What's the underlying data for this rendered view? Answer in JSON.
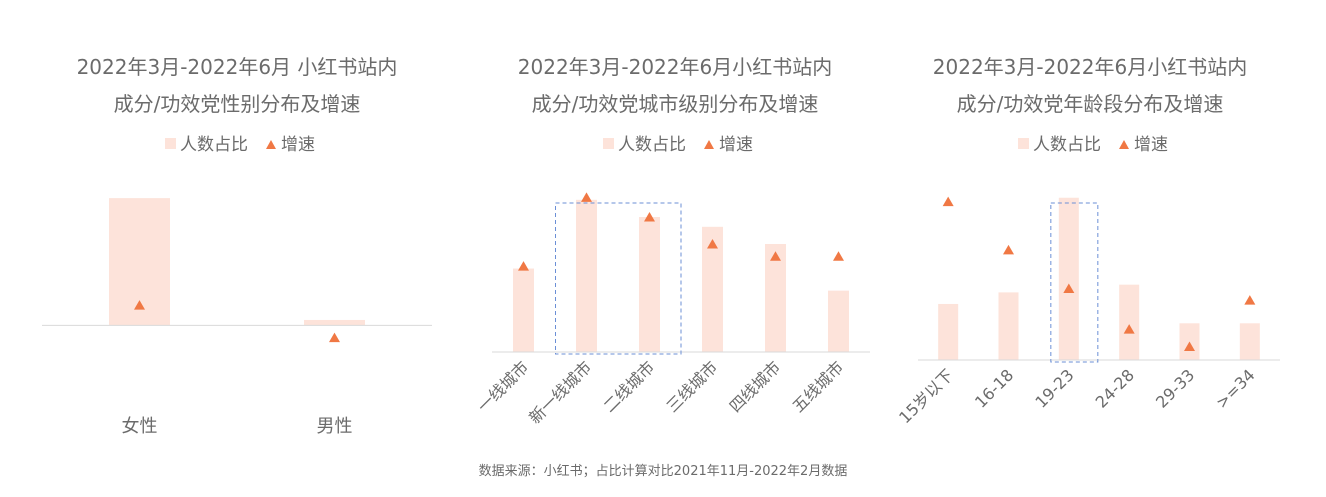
{
  "chart_data": [
    {
      "type": "bar",
      "title_lines": [
        "2022年3月-2022年6月 小红书站内",
        "成分/功效党性别分布及增速"
      ],
      "legend": [
        "人数占比",
        "增速"
      ],
      "categories": [
        "女性",
        "男性"
      ],
      "series": [
        {
          "name": "人数占比",
          "type": "bar",
          "values": [
            94,
            4
          ]
        },
        {
          "name": "增速",
          "type": "scatter",
          "values": [
            15,
            -9
          ]
        }
      ],
      "ylim": [
        -30,
        100
      ],
      "highlight": null,
      "colors": {
        "bar": "#fde3da",
        "marker": "#f07844",
        "axis": "#d9d9d9",
        "highlight": "#6b8fd6"
      }
    },
    {
      "type": "bar",
      "title_lines": [
        "2022年3月-2022年6月小红书站内",
        "成分/功效党城市级别分布及增速"
      ],
      "legend": [
        "人数占比",
        "增速"
      ],
      "categories": [
        "一线城市",
        "新一线城市",
        "二线城市",
        "三线城市",
        "四线城市",
        "五线城市"
      ],
      "series": [
        {
          "name": "人数占比",
          "type": "bar",
          "values": [
            17,
            31,
            27.5,
            25.5,
            22,
            12.5
          ]
        },
        {
          "name": "增速",
          "type": "scatter",
          "values": [
            17.5,
            31.5,
            27.5,
            22,
            19.5,
            19.5
          ]
        }
      ],
      "ylim": [
        0,
        33
      ],
      "highlight": [
        1,
        2
      ],
      "colors": {
        "bar": "#fde3da",
        "marker": "#f07844",
        "axis": "#d9d9d9",
        "highlight": "#6b8fd6"
      }
    },
    {
      "type": "bar",
      "title_lines": [
        "2022年3月-2022年6月小红书站内",
        "成分/功效党年龄段分布及增速"
      ],
      "legend": [
        "人数占比",
        "增速"
      ],
      "categories": [
        "15岁以下",
        "16-18",
        "19-23",
        "24-28",
        "29-33",
        ">=34"
      ],
      "series": [
        {
          "name": "人数占比",
          "type": "bar",
          "values": [
            14.5,
            17.5,
            42,
            19.5,
            9.5,
            9.5
          ]
        },
        {
          "name": "增速",
          "type": "scatter",
          "values": [
            41,
            28.5,
            18.5,
            8,
            3.5,
            15.5
          ]
        }
      ],
      "ylim": [
        0,
        44
      ],
      "highlight": [
        2,
        2
      ],
      "colors": {
        "bar": "#fde3da",
        "marker": "#f07844",
        "axis": "#d9d9d9",
        "highlight": "#6b8fd6"
      }
    }
  ],
  "source": "数据来源：小红书；占比计算对比2021年11月-2022年2月数据"
}
